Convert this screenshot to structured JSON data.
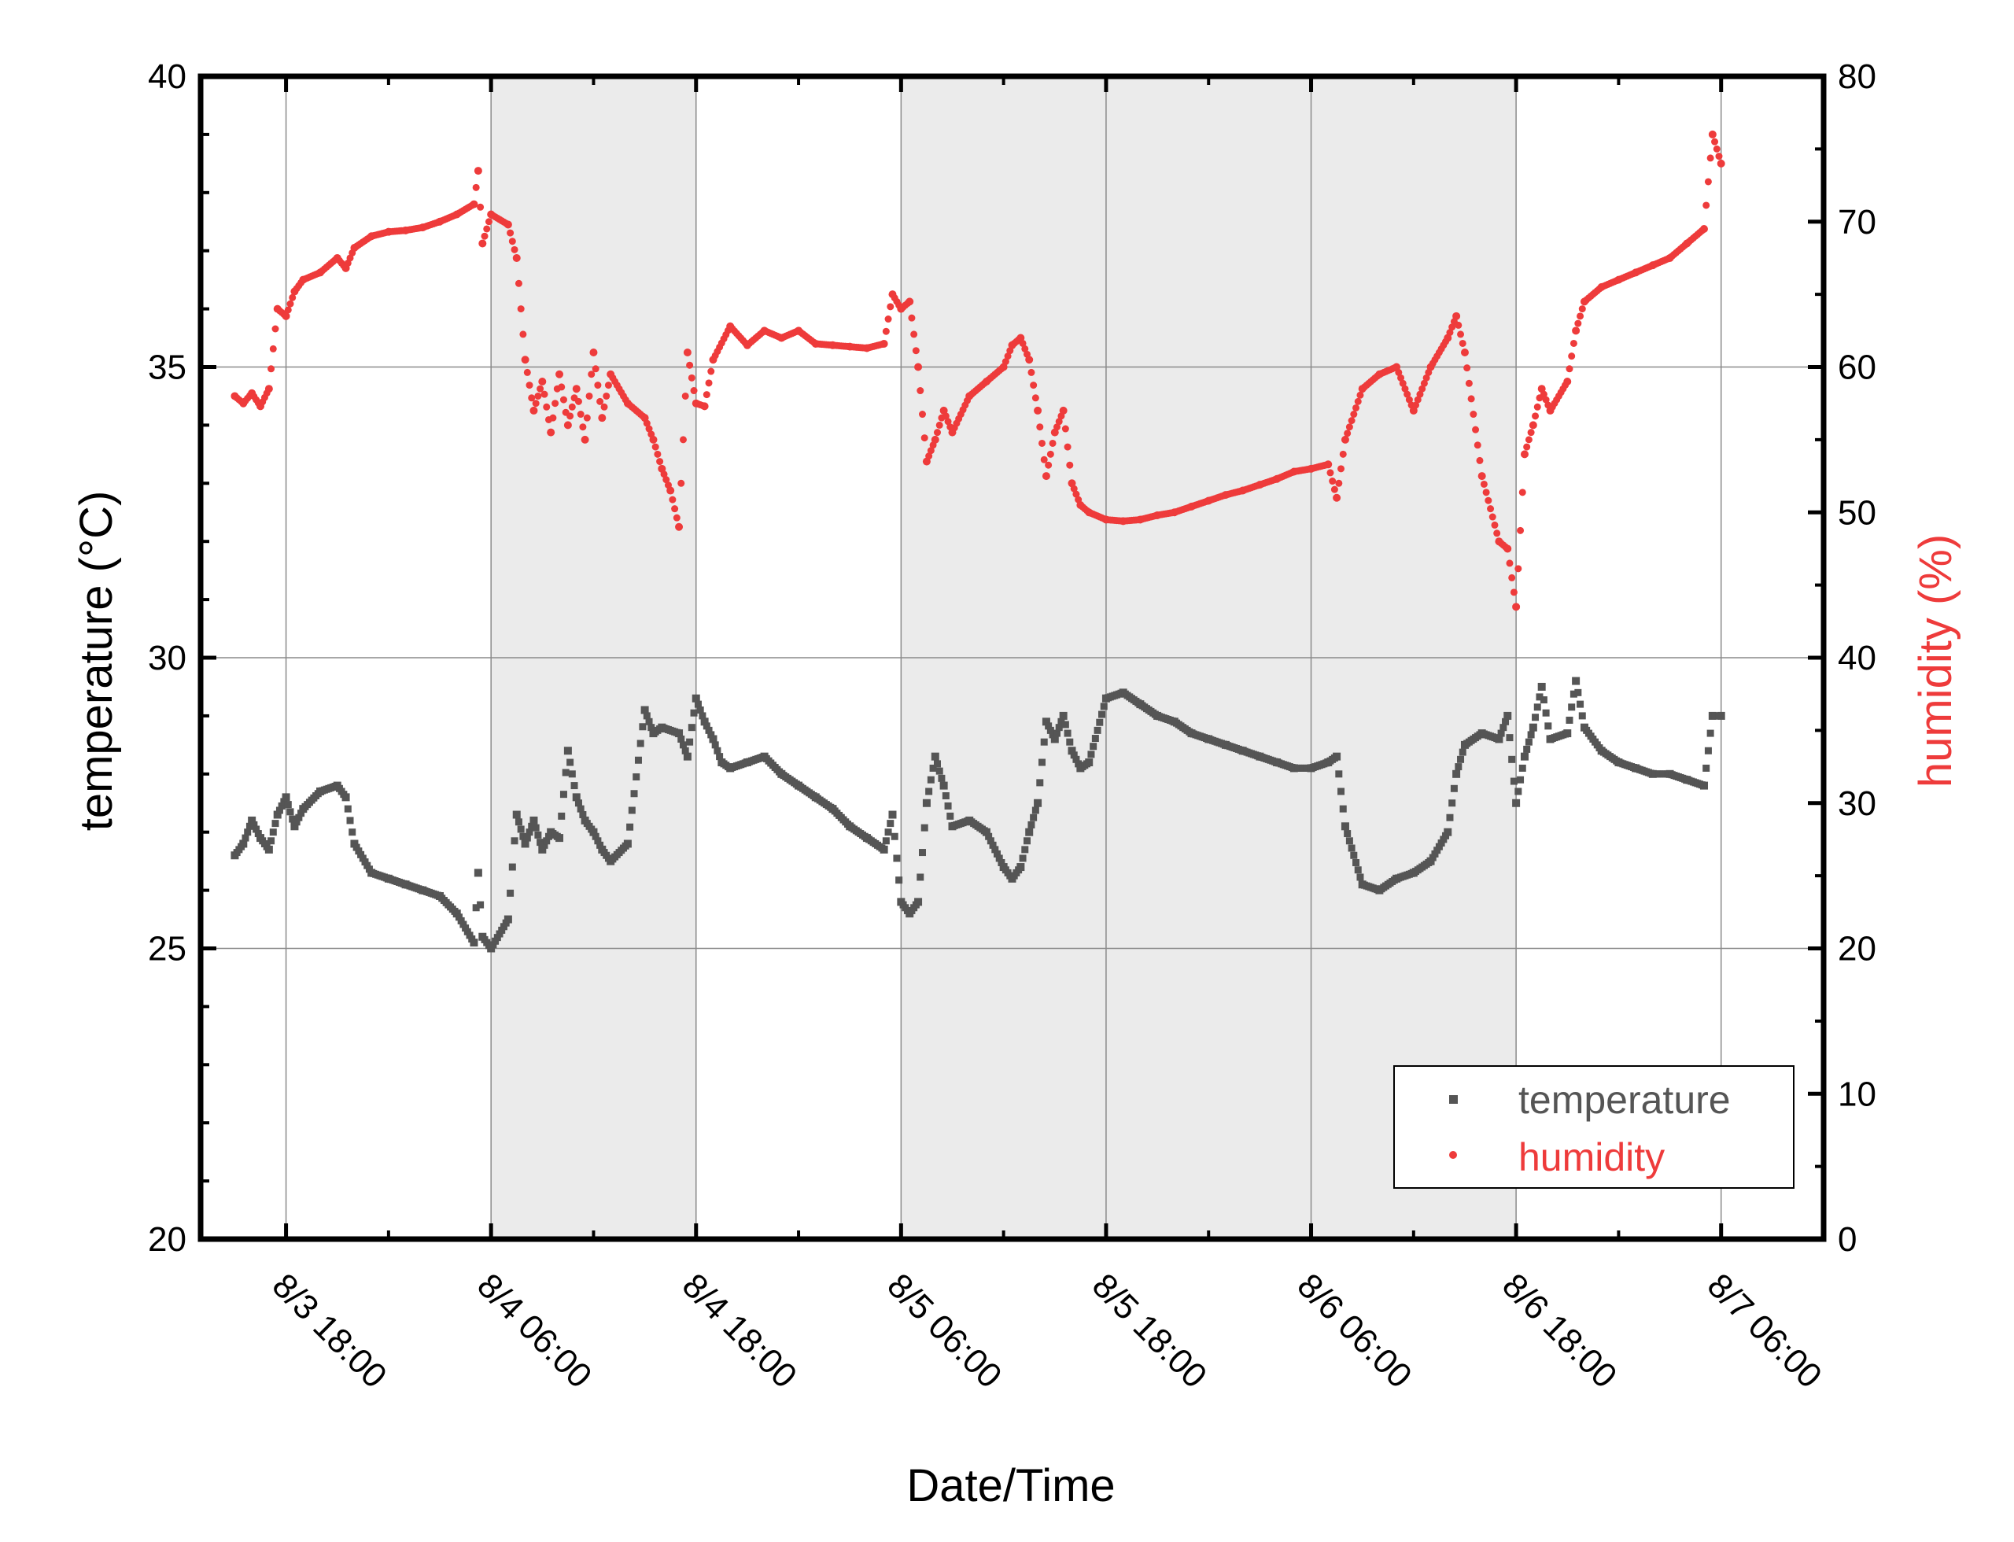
{
  "chart_data": {
    "type": "scatter",
    "xlabel": "Date/Time",
    "x_ticks": [
      "8/3 18:00",
      "8/4 06:00",
      "8/4 18:00",
      "8/5 06:00",
      "8/5 18:00",
      "8/6 06:00",
      "8/6 18:00",
      "8/7 06:00"
    ],
    "x_range": [
      "8/3 13:00",
      "8/7 12:00"
    ],
    "y_left": {
      "label": "temperature (°C)",
      "ticks": [
        "20",
        "25",
        "30",
        "35",
        "40"
      ],
      "range": [
        20,
        40
      ]
    },
    "y_right": {
      "label": "humidity (%)",
      "ticks": [
        "0",
        "10",
        "20",
        "30",
        "40",
        "50",
        "60",
        "70",
        "80"
      ],
      "range": [
        0,
        80
      ]
    },
    "grid": true,
    "shaded_periods": [
      {
        "from": "8/4 06:00",
        "to": "8/4 18:00"
      },
      {
        "from": "8/5 06:00",
        "to": "8/6 18:00"
      }
    ],
    "legend": {
      "position": "bottom-right",
      "entries": [
        "temperature",
        "humidity"
      ]
    },
    "colors": {
      "temperature": "#555555",
      "humidity": "#ee3b3b",
      "shade": "#ebebeb"
    },
    "series": [
      {
        "name": "temperature",
        "axis": "left",
        "points": [
          [
            "8/3 15:00",
            26.6
          ],
          [
            "8/3 15:30",
            26.8
          ],
          [
            "8/3 16:00",
            27.2
          ],
          [
            "8/3 16:30",
            26.9
          ],
          [
            "8/3 17:00",
            26.7
          ],
          [
            "8/3 17:30",
            27.3
          ],
          [
            "8/3 18:00",
            27.6
          ],
          [
            "8/3 18:30",
            27.1
          ],
          [
            "8/3 19:00",
            27.4
          ],
          [
            "8/3 20:00",
            27.7
          ],
          [
            "8/3 21:00",
            27.8
          ],
          [
            "8/3 21:30",
            27.6
          ],
          [
            "8/3 22:00",
            26.8
          ],
          [
            "8/3 23:00",
            26.3
          ],
          [
            "8/4 00:00",
            26.2
          ],
          [
            "8/4 01:00",
            26.1
          ],
          [
            "8/4 02:00",
            26.0
          ],
          [
            "8/4 03:00",
            25.9
          ],
          [
            "8/4 04:00",
            25.6
          ],
          [
            "8/4 05:00",
            25.1
          ],
          [
            "8/4 05:15",
            26.3
          ],
          [
            "8/4 05:30",
            25.2
          ],
          [
            "8/4 06:00",
            25.0
          ],
          [
            "8/4 07:00",
            25.5
          ],
          [
            "8/4 07:30",
            27.3
          ],
          [
            "8/4 08:00",
            26.8
          ],
          [
            "8/4 08:30",
            27.2
          ],
          [
            "8/4 09:00",
            26.7
          ],
          [
            "8/4 09:30",
            27.0
          ],
          [
            "8/4 10:00",
            26.9
          ],
          [
            "8/4 10:30",
            28.4
          ],
          [
            "8/4 11:00",
            27.6
          ],
          [
            "8/4 11:30",
            27.2
          ],
          [
            "8/4 12:00",
            27.0
          ],
          [
            "8/4 12:30",
            26.7
          ],
          [
            "8/4 13:00",
            26.5
          ],
          [
            "8/4 14:00",
            26.8
          ],
          [
            "8/4 15:00",
            29.1
          ],
          [
            "8/4 15:30",
            28.7
          ],
          [
            "8/4 16:00",
            28.8
          ],
          [
            "8/4 17:00",
            28.7
          ],
          [
            "8/4 17:30",
            28.3
          ],
          [
            "8/4 18:00",
            29.3
          ],
          [
            "8/4 18:30",
            28.9
          ],
          [
            "8/4 19:00",
            28.6
          ],
          [
            "8/4 19:30",
            28.2
          ],
          [
            "8/4 20:00",
            28.1
          ],
          [
            "8/4 21:00",
            28.2
          ],
          [
            "8/4 22:00",
            28.3
          ],
          [
            "8/4 23:00",
            28.0
          ],
          [
            "8/5 00:00",
            27.8
          ],
          [
            "8/5 01:00",
            27.6
          ],
          [
            "8/5 02:00",
            27.4
          ],
          [
            "8/5 03:00",
            27.1
          ],
          [
            "8/5 04:00",
            26.9
          ],
          [
            "8/5 05:00",
            26.7
          ],
          [
            "8/5 05:30",
            27.3
          ],
          [
            "8/5 06:00",
            25.8
          ],
          [
            "8/5 06:30",
            25.6
          ],
          [
            "8/5 07:00",
            25.8
          ],
          [
            "8/5 07:30",
            27.5
          ],
          [
            "8/5 08:00",
            28.3
          ],
          [
            "8/5 08:30",
            27.8
          ],
          [
            "8/5 09:00",
            27.1
          ],
          [
            "8/5 10:00",
            27.2
          ],
          [
            "8/5 11:00",
            27.0
          ],
          [
            "8/5 12:00",
            26.4
          ],
          [
            "8/5 12:30",
            26.2
          ],
          [
            "8/5 13:00",
            26.4
          ],
          [
            "8/5 13:30",
            27.0
          ],
          [
            "8/5 14:00",
            27.5
          ],
          [
            "8/5 14:30",
            28.9
          ],
          [
            "8/5 15:00",
            28.6
          ],
          [
            "8/5 15:30",
            29.0
          ],
          [
            "8/5 16:00",
            28.4
          ],
          [
            "8/5 16:30",
            28.1
          ],
          [
            "8/5 17:00",
            28.2
          ],
          [
            "8/5 18:00",
            29.3
          ],
          [
            "8/5 19:00",
            29.4
          ],
          [
            "8/5 20:00",
            29.2
          ],
          [
            "8/5 21:00",
            29.0
          ],
          [
            "8/5 22:00",
            28.9
          ],
          [
            "8/5 23:00",
            28.7
          ],
          [
            "8/6 00:00",
            28.6
          ],
          [
            "8/6 01:00",
            28.5
          ],
          [
            "8/6 02:00",
            28.4
          ],
          [
            "8/6 03:00",
            28.3
          ],
          [
            "8/6 04:00",
            28.2
          ],
          [
            "8/6 05:00",
            28.1
          ],
          [
            "8/6 06:00",
            28.1
          ],
          [
            "8/6 07:00",
            28.2
          ],
          [
            "8/6 07:30",
            28.3
          ],
          [
            "8/6 08:00",
            27.1
          ],
          [
            "8/6 09:00",
            26.1
          ],
          [
            "8/6 10:00",
            26.0
          ],
          [
            "8/6 11:00",
            26.2
          ],
          [
            "8/6 12:00",
            26.3
          ],
          [
            "8/6 13:00",
            26.5
          ],
          [
            "8/6 14:00",
            27.0
          ],
          [
            "8/6 14:30",
            28.0
          ],
          [
            "8/6 15:00",
            28.5
          ],
          [
            "8/6 16:00",
            28.7
          ],
          [
            "8/6 17:00",
            28.6
          ],
          [
            "8/6 17:30",
            29.0
          ],
          [
            "8/6 18:00",
            27.5
          ],
          [
            "8/6 18:30",
            28.3
          ],
          [
            "8/6 19:00",
            28.8
          ],
          [
            "8/6 19:30",
            29.5
          ],
          [
            "8/6 20:00",
            28.6
          ],
          [
            "8/6 21:00",
            28.7
          ],
          [
            "8/6 21:30",
            29.6
          ],
          [
            "8/6 22:00",
            28.8
          ],
          [
            "8/6 23:00",
            28.4
          ],
          [
            "8/7 00:00",
            28.2
          ],
          [
            "8/7 01:00",
            28.1
          ],
          [
            "8/7 02:00",
            28.0
          ],
          [
            "8/7 03:00",
            28.0
          ],
          [
            "8/7 04:00",
            27.9
          ],
          [
            "8/7 05:00",
            27.8
          ],
          [
            "8/7 05:30",
            29.0
          ],
          [
            "8/7 06:00",
            29.0
          ]
        ]
      },
      {
        "name": "humidity",
        "axis": "right",
        "points": [
          [
            "8/3 15:00",
            58.0
          ],
          [
            "8/3 15:30",
            57.5
          ],
          [
            "8/3 16:00",
            58.2
          ],
          [
            "8/3 16:30",
            57.3
          ],
          [
            "8/3 17:00",
            58.5
          ],
          [
            "8/3 17:30",
            64.0
          ],
          [
            "8/3 18:00",
            63.5
          ],
          [
            "8/3 18:30",
            65.2
          ],
          [
            "8/3 19:00",
            66.0
          ],
          [
            "8/3 20:00",
            66.5
          ],
          [
            "8/3 21:00",
            67.5
          ],
          [
            "8/3 21:30",
            66.8
          ],
          [
            "8/3 22:00",
            68.2
          ],
          [
            "8/3 23:00",
            69.0
          ],
          [
            "8/4 00:00",
            69.3
          ],
          [
            "8/4 01:00",
            69.4
          ],
          [
            "8/4 02:00",
            69.6
          ],
          [
            "8/4 03:00",
            70.0
          ],
          [
            "8/4 04:00",
            70.5
          ],
          [
            "8/4 05:00",
            71.2
          ],
          [
            "8/4 05:15",
            73.5
          ],
          [
            "8/4 05:30",
            68.5
          ],
          [
            "8/4 06:00",
            70.5
          ],
          [
            "8/4 07:00",
            69.8
          ],
          [
            "8/4 07:30",
            67.5
          ],
          [
            "8/4 08:00",
            60.5
          ],
          [
            "8/4 08:30",
            57.0
          ],
          [
            "8/4 09:00",
            59.0
          ],
          [
            "8/4 09:30",
            55.5
          ],
          [
            "8/4 10:00",
            59.5
          ],
          [
            "8/4 10:30",
            56.0
          ],
          [
            "8/4 11:00",
            58.5
          ],
          [
            "8/4 11:30",
            55.0
          ],
          [
            "8/4 12:00",
            61.0
          ],
          [
            "8/4 12:30",
            56.5
          ],
          [
            "8/4 13:00",
            59.5
          ],
          [
            "8/4 14:00",
            57.5
          ],
          [
            "8/4 15:00",
            56.5
          ],
          [
            "8/4 15:30",
            55.0
          ],
          [
            "8/4 16:00",
            53.0
          ],
          [
            "8/4 16:30",
            51.5
          ],
          [
            "8/4 17:00",
            49.0
          ],
          [
            "8/4 17:30",
            61.0
          ],
          [
            "8/4 18:00",
            57.5
          ],
          [
            "8/4 18:30",
            57.3
          ],
          [
            "8/4 19:00",
            60.5
          ],
          [
            "8/4 20:00",
            62.8
          ],
          [
            "8/4 21:00",
            61.5
          ],
          [
            "8/4 22:00",
            62.5
          ],
          [
            "8/4 23:00",
            62.0
          ],
          [
            "8/5 00:00",
            62.5
          ],
          [
            "8/5 01:00",
            61.6
          ],
          [
            "8/5 02:00",
            61.5
          ],
          [
            "8/5 03:00",
            61.4
          ],
          [
            "8/5 04:00",
            61.3
          ],
          [
            "8/5 05:00",
            61.6
          ],
          [
            "8/5 05:30",
            65.0
          ],
          [
            "8/5 06:00",
            64.0
          ],
          [
            "8/5 06:30",
            64.5
          ],
          [
            "8/5 07:00",
            60.0
          ],
          [
            "8/5 07:30",
            53.5
          ],
          [
            "8/5 08:00",
            55.0
          ],
          [
            "8/5 08:30",
            57.0
          ],
          [
            "8/5 09:00",
            55.5
          ],
          [
            "8/5 10:00",
            58.0
          ],
          [
            "8/5 11:00",
            59.0
          ],
          [
            "8/5 12:00",
            60.0
          ],
          [
            "8/5 12:30",
            61.5
          ],
          [
            "8/5 13:00",
            62.0
          ],
          [
            "8/5 13:30",
            60.5
          ],
          [
            "8/5 14:00",
            57.0
          ],
          [
            "8/5 14:30",
            52.5
          ],
          [
            "8/5 15:00",
            55.5
          ],
          [
            "8/5 15:30",
            57.0
          ],
          [
            "8/5 16:00",
            52.0
          ],
          [
            "8/5 16:30",
            50.5
          ],
          [
            "8/5 17:00",
            50.0
          ],
          [
            "8/5 18:00",
            49.5
          ],
          [
            "8/5 19:00",
            49.4
          ],
          [
            "8/5 20:00",
            49.5
          ],
          [
            "8/5 21:00",
            49.8
          ],
          [
            "8/5 22:00",
            50.0
          ],
          [
            "8/5 23:00",
            50.4
          ],
          [
            "8/6 00:00",
            50.8
          ],
          [
            "8/6 01:00",
            51.2
          ],
          [
            "8/6 02:00",
            51.5
          ],
          [
            "8/6 03:00",
            51.9
          ],
          [
            "8/6 04:00",
            52.3
          ],
          [
            "8/6 05:00",
            52.8
          ],
          [
            "8/6 06:00",
            53.0
          ],
          [
            "8/6 07:00",
            53.3
          ],
          [
            "8/6 07:30",
            51.0
          ],
          [
            "8/6 08:00",
            55.0
          ],
          [
            "8/6 09:00",
            58.5
          ],
          [
            "8/6 10:00",
            59.5
          ],
          [
            "8/6 11:00",
            60.0
          ],
          [
            "8/6 12:00",
            57.0
          ],
          [
            "8/6 13:00",
            60.0
          ],
          [
            "8/6 14:00",
            62.0
          ],
          [
            "8/6 14:30",
            63.5
          ],
          [
            "8/6 15:00",
            61.0
          ],
          [
            "8/6 16:00",
            52.5
          ],
          [
            "8/6 17:00",
            48.0
          ],
          [
            "8/6 17:30",
            47.5
          ],
          [
            "8/6 18:00",
            43.5
          ],
          [
            "8/6 18:30",
            54.0
          ],
          [
            "8/6 19:00",
            56.0
          ],
          [
            "8/6 19:30",
            58.5
          ],
          [
            "8/6 20:00",
            57.0
          ],
          [
            "8/6 21:00",
            59.0
          ],
          [
            "8/6 21:30",
            62.5
          ],
          [
            "8/6 22:00",
            64.5
          ],
          [
            "8/6 23:00",
            65.5
          ],
          [
            "8/7 00:00",
            66.0
          ],
          [
            "8/7 01:00",
            66.5
          ],
          [
            "8/7 02:00",
            67.0
          ],
          [
            "8/7 03:00",
            67.5
          ],
          [
            "8/7 04:00",
            68.5
          ],
          [
            "8/7 05:00",
            69.5
          ],
          [
            "8/7 05:30",
            76.0
          ],
          [
            "8/7 06:00",
            74.0
          ]
        ]
      }
    ]
  }
}
